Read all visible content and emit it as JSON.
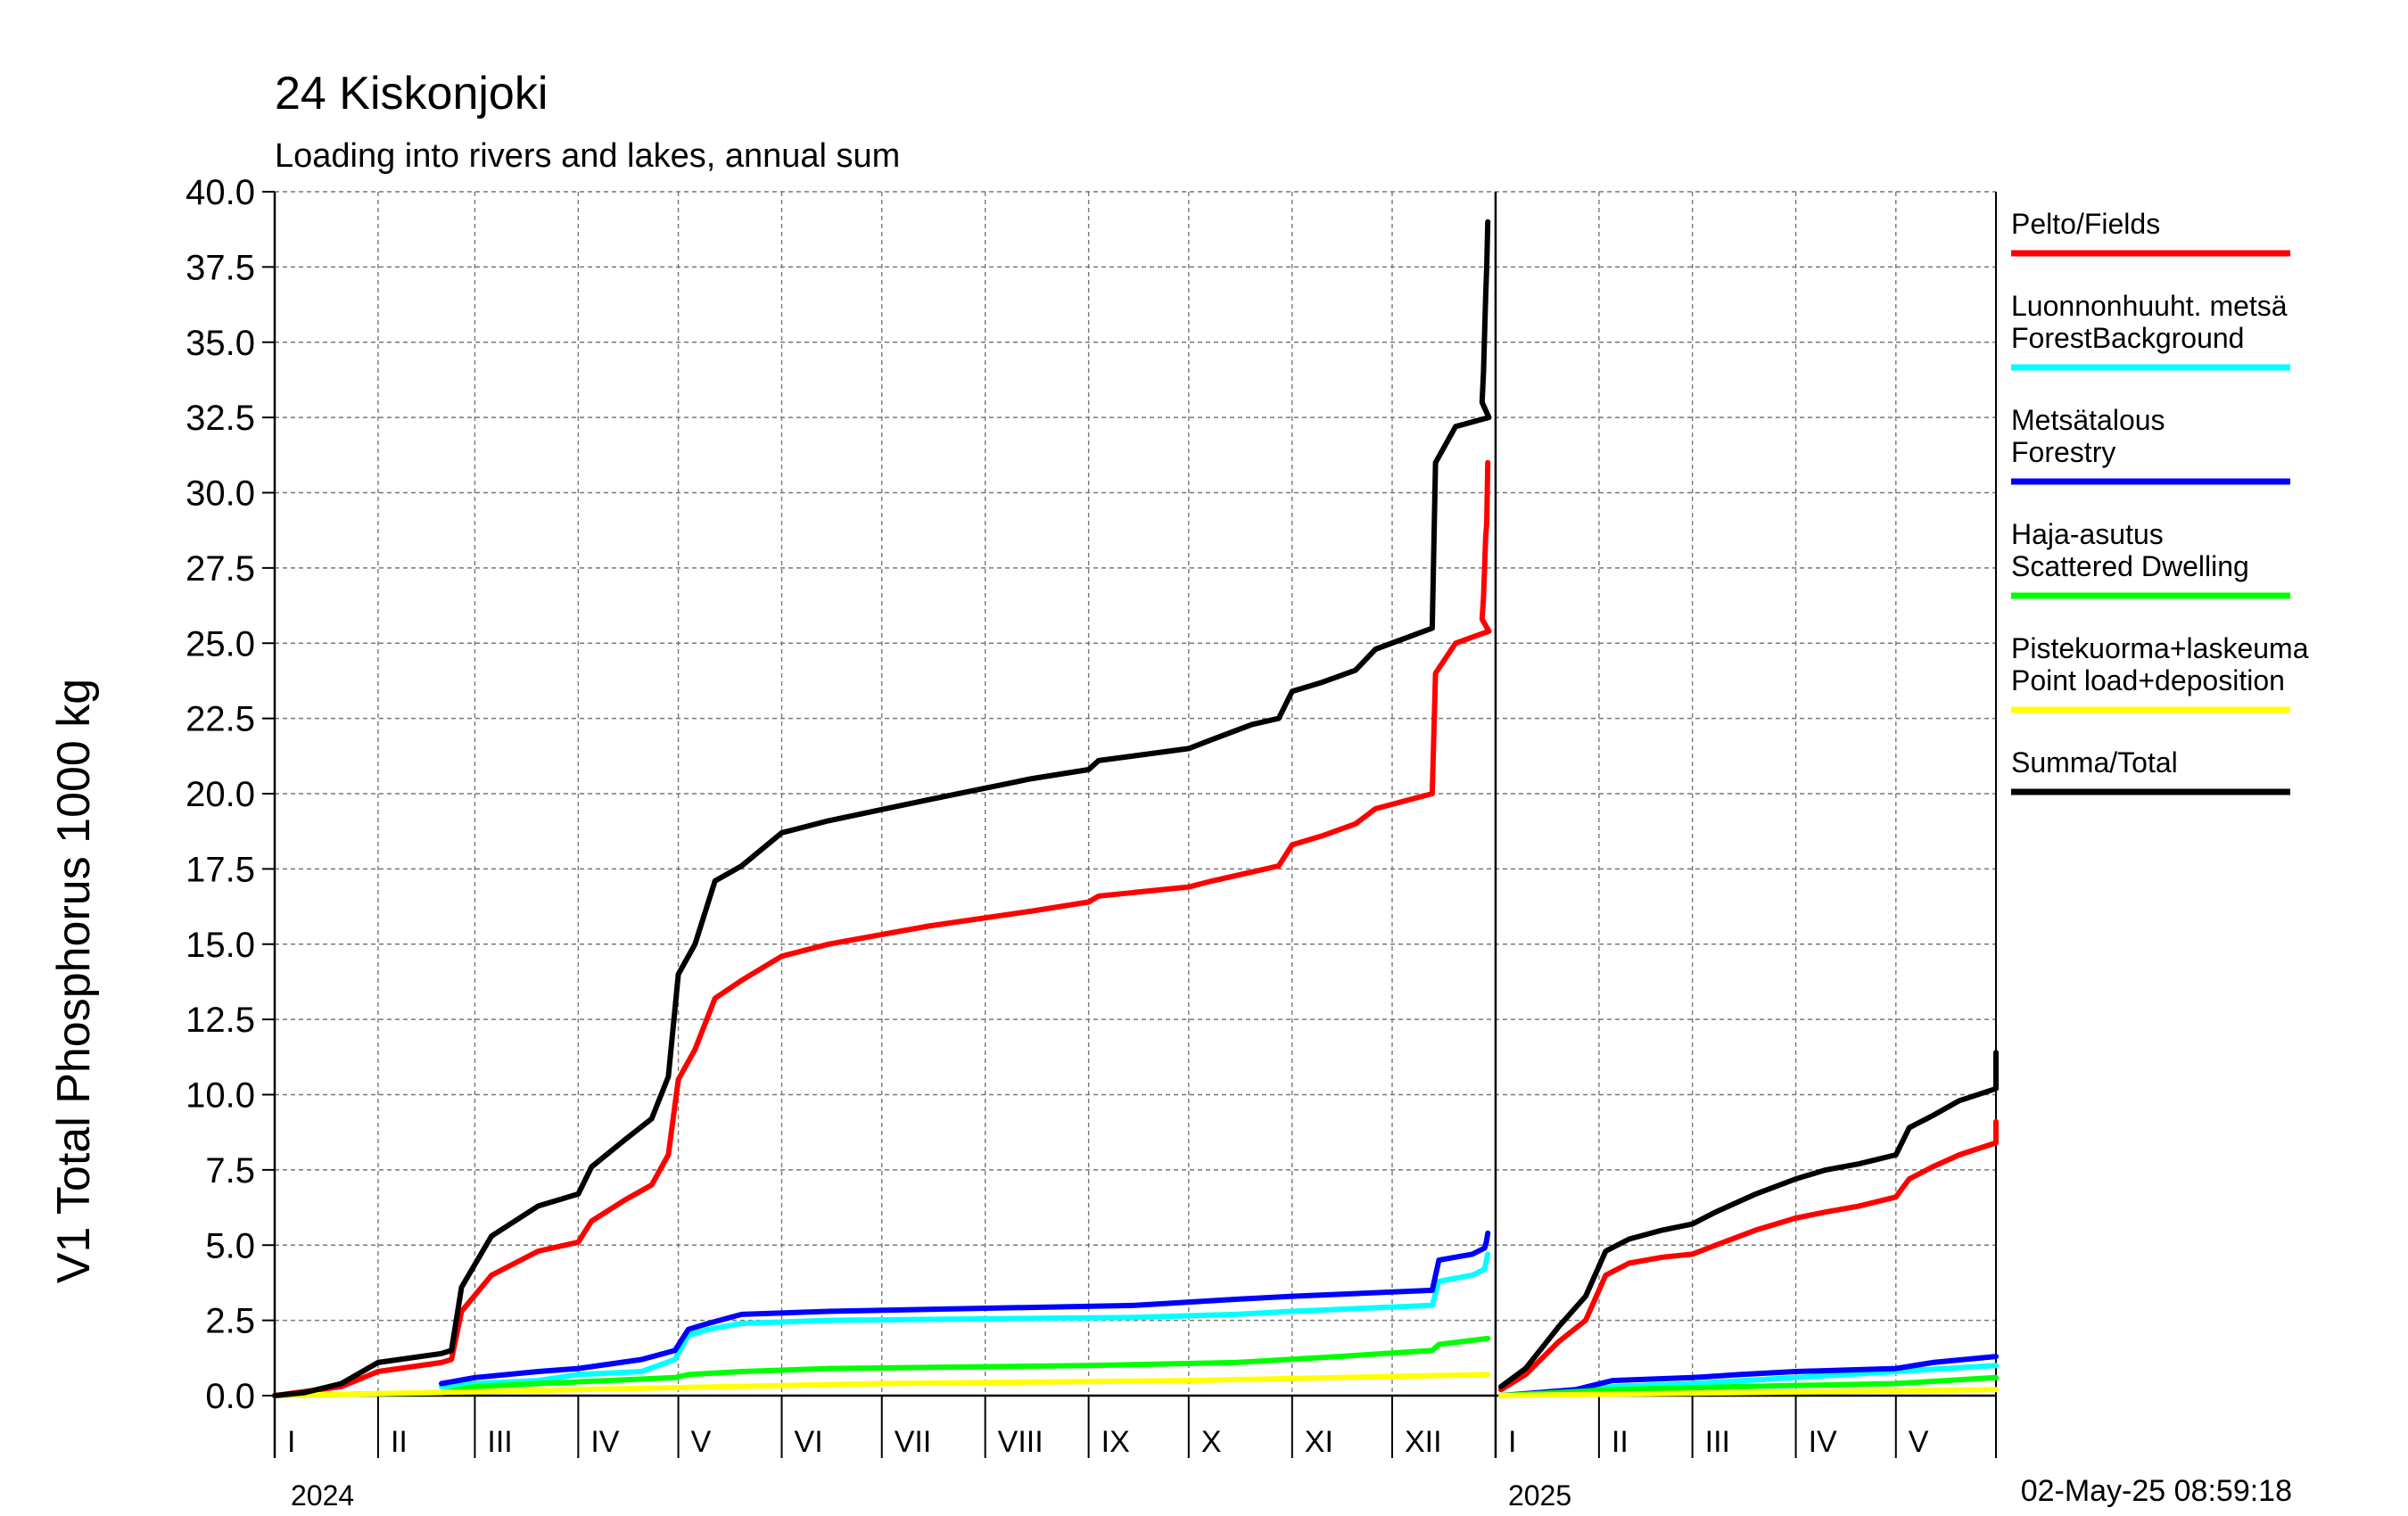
{
  "header": {
    "title": "24 Kiskonjoki",
    "subtitle": "Loading into rivers and lakes, annual sum"
  },
  "footer": {
    "timestamp": "02-May-25 08:59:18"
  },
  "chart_data": {
    "type": "line",
    "ylabel": "V1 Total Phosphorus 1000 kg",
    "ylim": [
      0,
      40
    ],
    "yticks": [
      "0.0",
      "2.5",
      "5.0",
      "7.5",
      "10.0",
      "12.5",
      "15.0",
      "17.5",
      "20.0",
      "22.5",
      "25.0",
      "27.5",
      "30.0",
      "32.5",
      "35.0",
      "37.5",
      "40.0"
    ],
    "grid": true,
    "legend_position": "right",
    "xlim": [
      "2024-01-01",
      "2025-05-31"
    ],
    "x_axis": {
      "month_labels_2024": [
        "I",
        "II",
        "III",
        "IV",
        "V",
        "VI",
        "VII",
        "VIII",
        "IX",
        "X",
        "XI",
        "XII"
      ],
      "month_labels_2025": [
        "I",
        "II",
        "III",
        "IV",
        "V"
      ],
      "year_labels": [
        "2024",
        "2025"
      ]
    },
    "series": [
      {
        "name": "Pelto/Fields",
        "color": "#ff0000",
        "segments": [
          [
            [
              "2024-01-01",
              0.0
            ],
            [
              "2024-01-21",
              0.3
            ],
            [
              "2024-02-01",
              0.8
            ],
            [
              "2024-02-20",
              1.1
            ],
            [
              "2024-02-23",
              1.2
            ],
            [
              "2024-02-26",
              2.8
            ],
            [
              "2024-03-06",
              4.0
            ],
            [
              "2024-03-20",
              4.8
            ],
            [
              "2024-04-01",
              5.1
            ],
            [
              "2024-04-05",
              5.8
            ],
            [
              "2024-04-15",
              6.5
            ],
            [
              "2024-04-23",
              7.0
            ],
            [
              "2024-04-28",
              8.0
            ],
            [
              "2024-05-01",
              10.5
            ],
            [
              "2024-05-06",
              11.5
            ],
            [
              "2024-05-12",
              13.2
            ],
            [
              "2024-05-20",
              13.8
            ],
            [
              "2024-06-01",
              14.6
            ],
            [
              "2024-06-15",
              15.0
            ],
            [
              "2024-07-15",
              15.6
            ],
            [
              "2024-08-15",
              16.1
            ],
            [
              "2024-09-01",
              16.4
            ],
            [
              "2024-09-04",
              16.6
            ],
            [
              "2024-10-01",
              16.9
            ],
            [
              "2024-10-08",
              17.1
            ],
            [
              "2024-10-20",
              17.4
            ],
            [
              "2024-10-28",
              17.6
            ],
            [
              "2024-11-01",
              18.3
            ],
            [
              "2024-11-10",
              18.6
            ],
            [
              "2024-11-20",
              19.0
            ],
            [
              "2024-11-26",
              19.5
            ],
            [
              "2024-12-13",
              20.0
            ],
            [
              "2024-12-14",
              24.0
            ],
            [
              "2024-12-20",
              25.0
            ],
            [
              "2024-12-30",
              25.4
            ],
            [
              "2025-01-08",
              25.8
            ],
            [
              "2025-01-12",
              26.5
            ],
            [
              "2025-01-18",
              28.5
            ],
            [
              "2025-01-21",
              29.0
            ],
            [
              "2025-01-24",
              31.0
            ]
          ],
          [
            [
              "2025-01-01",
              0.2
            ],
            [
              "2025-01-10",
              0.7
            ],
            [
              "2025-01-20",
              1.8
            ],
            [
              "2025-01-28",
              2.5
            ],
            [
              "2025-02-03",
              4.0
            ],
            [
              "2025-02-10",
              4.4
            ],
            [
              "2025-02-20",
              4.6
            ],
            [
              "2025-03-01",
              4.7
            ],
            [
              "2025-03-08",
              5.0
            ],
            [
              "2025-03-20",
              5.5
            ],
            [
              "2025-04-01",
              5.9
            ],
            [
              "2025-04-10",
              6.1
            ],
            [
              "2025-04-20",
              6.3
            ],
            [
              "2025-05-01",
              6.6
            ],
            [
              "2025-05-05",
              7.2
            ],
            [
              "2025-05-12",
              7.6
            ],
            [
              "2025-05-20",
              8.0
            ],
            [
              "2025-05-31",
              8.4
            ],
            [
              "2025-06-06",
              9.0
            ],
            [
              "2025-06-12",
              9.1
            ]
          ]
        ]
      },
      {
        "name": "Luonnonhuuht. metsä ForestBackground",
        "color": "#00ffff",
        "segments": [
          [
            [
              "2024-02-20",
              0.3
            ],
            [
              "2024-03-01",
              0.4
            ],
            [
              "2024-03-20",
              0.5
            ],
            [
              "2024-04-01",
              0.7
            ],
            [
              "2024-04-20",
              0.8
            ],
            [
              "2024-04-30",
              1.2
            ],
            [
              "2024-05-04",
              2.0
            ],
            [
              "2024-05-10",
              2.2
            ],
            [
              "2024-05-20",
              2.4
            ],
            [
              "2024-06-15",
              2.5
            ],
            [
              "2024-09-15",
              2.6
            ],
            [
              "2024-10-15",
              2.7
            ],
            [
              "2024-11-01",
              2.8
            ],
            [
              "2024-12-13",
              3.0
            ],
            [
              "2024-12-15",
              3.8
            ],
            [
              "2024-12-25",
              4.0
            ],
            [
              "2025-01-15",
              4.2
            ],
            [
              "2025-01-24",
              4.7
            ]
          ],
          [
            [
              "2025-01-01",
              0.0
            ],
            [
              "2025-01-25",
              0.1
            ],
            [
              "2025-02-05",
              0.3
            ],
            [
              "2025-03-01",
              0.4
            ],
            [
              "2025-04-01",
              0.6
            ],
            [
              "2025-05-01",
              0.8
            ],
            [
              "2025-06-12",
              1.0
            ]
          ]
        ]
      },
      {
        "name": "Metsätalous Forestry",
        "color": "#0000ff",
        "segments": [
          [
            [
              "2024-02-20",
              0.4
            ],
            [
              "2024-03-01",
              0.6
            ],
            [
              "2024-03-20",
              0.8
            ],
            [
              "2024-04-01",
              0.9
            ],
            [
              "2024-04-20",
              1.2
            ],
            [
              "2024-04-30",
              1.5
            ],
            [
              "2024-05-04",
              2.2
            ],
            [
              "2024-05-10",
              2.4
            ],
            [
              "2024-05-20",
              2.7
            ],
            [
              "2024-06-15",
              2.8
            ],
            [
              "2024-09-15",
              3.0
            ],
            [
              "2024-10-15",
              3.2
            ],
            [
              "2024-11-01",
              3.3
            ],
            [
              "2024-12-13",
              3.5
            ],
            [
              "2024-12-15",
              4.5
            ],
            [
              "2024-12-25",
              4.7
            ],
            [
              "2025-01-15",
              4.9
            ],
            [
              "2025-01-20",
              5.1
            ],
            [
              "2025-01-24",
              5.4
            ]
          ],
          [
            [
              "2025-01-01",
              0.0
            ],
            [
              "2025-01-25",
              0.2
            ],
            [
              "2025-02-05",
              0.5
            ],
            [
              "2025-03-01",
              0.6
            ],
            [
              "2025-03-15",
              0.7
            ],
            [
              "2025-04-01",
              0.8
            ],
            [
              "2025-05-01",
              0.9
            ],
            [
              "2025-05-12",
              1.1
            ],
            [
              "2025-06-12",
              1.3
            ]
          ]
        ]
      },
      {
        "name": "Haja-asutus Scattered Dwelling",
        "color": "#00ff00",
        "segments": [
          [
            [
              "2024-01-01",
              0.0
            ],
            [
              "2024-02-20",
              0.1
            ],
            [
              "2024-03-01",
              0.3
            ],
            [
              "2024-03-20",
              0.4
            ],
            [
              "2024-04-10",
              0.5
            ],
            [
              "2024-04-30",
              0.6
            ],
            [
              "2024-05-04",
              0.7
            ],
            [
              "2024-05-20",
              0.8
            ],
            [
              "2024-06-15",
              0.9
            ],
            [
              "2024-09-01",
              1.0
            ],
            [
              "2024-10-15",
              1.1
            ],
            [
              "2024-11-15",
              1.3
            ],
            [
              "2024-12-13",
              1.5
            ],
            [
              "2024-12-15",
              1.7
            ],
            [
              "2025-01-24",
              1.9
            ]
          ],
          [
            [
              "2025-01-01",
              0.0
            ],
            [
              "2025-02-05",
              0.2
            ],
            [
              "2025-03-15",
              0.3
            ],
            [
              "2025-05-01",
              0.4
            ],
            [
              "2025-06-12",
              0.6
            ]
          ]
        ]
      },
      {
        "name": "Pistekuorma+laskeuma Point load+deposition",
        "color": "#ffff00",
        "segments": [
          [
            [
              "2024-01-01",
              0.0
            ],
            [
              "2024-04-01",
              0.2
            ],
            [
              "2024-07-01",
              0.4
            ],
            [
              "2024-10-01",
              0.5
            ],
            [
              "2025-01-24",
              0.7
            ]
          ],
          [
            [
              "2025-01-01",
              0.0
            ],
            [
              "2025-03-15",
              0.1
            ],
            [
              "2025-06-12",
              0.2
            ]
          ]
        ]
      },
      {
        "name": "Summa/Total",
        "color": "#000000",
        "segments": [
          [
            [
              "2024-01-01",
              0.0
            ],
            [
              "2024-01-10",
              0.1
            ],
            [
              "2024-01-21",
              0.4
            ],
            [
              "2024-02-01",
              1.1
            ],
            [
              "2024-02-20",
              1.4
            ],
            [
              "2024-02-23",
              1.5
            ],
            [
              "2024-02-26",
              3.6
            ],
            [
              "2024-03-06",
              5.3
            ],
            [
              "2024-03-20",
              6.3
            ],
            [
              "2024-04-01",
              6.7
            ],
            [
              "2024-04-05",
              7.6
            ],
            [
              "2024-04-15",
              8.5
            ],
            [
              "2024-04-23",
              9.2
            ],
            [
              "2024-04-28",
              10.6
            ],
            [
              "2024-05-01",
              14.0
            ],
            [
              "2024-05-06",
              15.0
            ],
            [
              "2024-05-12",
              17.1
            ],
            [
              "2024-05-20",
              17.6
            ],
            [
              "2024-06-01",
              18.7
            ],
            [
              "2024-06-15",
              19.1
            ],
            [
              "2024-07-15",
              19.8
            ],
            [
              "2024-08-15",
              20.5
            ],
            [
              "2024-09-01",
              20.8
            ],
            [
              "2024-09-04",
              21.1
            ],
            [
              "2024-10-01",
              21.5
            ],
            [
              "2024-10-08",
              21.8
            ],
            [
              "2024-10-20",
              22.3
            ],
            [
              "2024-10-28",
              22.5
            ],
            [
              "2024-11-01",
              23.4
            ],
            [
              "2024-11-10",
              23.7
            ],
            [
              "2024-11-20",
              24.1
            ],
            [
              "2024-11-26",
              24.8
            ],
            [
              "2024-12-13",
              25.5
            ],
            [
              "2024-12-14",
              31.0
            ],
            [
              "2024-12-20",
              32.2
            ],
            [
              "2024-12-30",
              32.5
            ],
            [
              "2025-01-08",
              33.0
            ],
            [
              "2025-01-12",
              34.0
            ],
            [
              "2025-01-18",
              36.5
            ],
            [
              "2025-01-21",
              37.5
            ],
            [
              "2025-01-24",
              39.0
            ]
          ],
          [
            [
              "2025-01-01",
              0.3
            ],
            [
              "2025-01-10",
              0.9
            ],
            [
              "2025-01-20",
              2.3
            ],
            [
              "2025-01-28",
              3.3
            ],
            [
              "2025-02-03",
              4.8
            ],
            [
              "2025-02-10",
              5.2
            ],
            [
              "2025-02-20",
              5.5
            ],
            [
              "2025-03-01",
              5.7
            ],
            [
              "2025-03-08",
              6.1
            ],
            [
              "2025-03-20",
              6.7
            ],
            [
              "2025-04-01",
              7.2
            ],
            [
              "2025-04-10",
              7.5
            ],
            [
              "2025-04-20",
              7.7
            ],
            [
              "2025-05-01",
              8.0
            ],
            [
              "2025-05-05",
              8.9
            ],
            [
              "2025-05-12",
              9.3
            ],
            [
              "2025-05-20",
              9.8
            ],
            [
              "2025-05-31",
              10.2
            ],
            [
              "2025-06-06",
              11.0
            ],
            [
              "2025-06-12",
              11.4
            ]
          ]
        ]
      }
    ],
    "legend": [
      {
        "lines": [
          "Pelto/Fields"
        ],
        "color": "#ff0000"
      },
      {
        "lines": [
          "Luonnonhuuht. metsä",
          "ForestBackground"
        ],
        "color": "#00ffff"
      },
      {
        "lines": [
          "Metsätalous",
          "Forestry"
        ],
        "color": "#0000ff"
      },
      {
        "lines": [
          "Haja-asutus",
          "Scattered Dwelling"
        ],
        "color": "#00ff00"
      },
      {
        "lines": [
          "Pistekuorma+laskeuma",
          "Point load+deposition"
        ],
        "color": "#ffff00"
      },
      {
        "lines": [
          "Summa/Total"
        ],
        "color": "#000000"
      }
    ]
  }
}
